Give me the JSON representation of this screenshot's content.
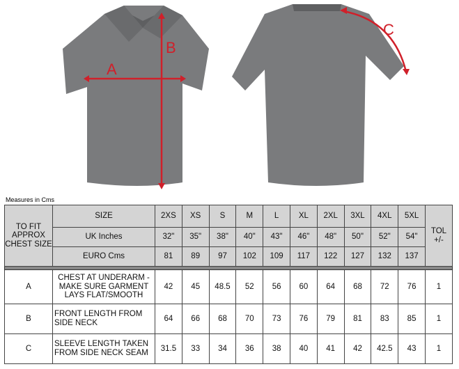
{
  "labels": {
    "a": "A",
    "b": "B",
    "c": "C"
  },
  "colors": {
    "shirt": "#7a7b7d",
    "measure": "#d0202a",
    "header_bg": "#d4d4d4"
  },
  "measures_note": "Measures in Cms",
  "table": {
    "fit_label": "TO FIT APPROX CHEST SIZE",
    "size_label": "SIZE",
    "uk_label": "UK Inches",
    "euro_label": "EURO Cms",
    "tol_label": "TOL +/-",
    "sizes": [
      "2XS",
      "XS",
      "S",
      "M",
      "L",
      "XL",
      "2XL",
      "3XL",
      "4XL",
      "5XL"
    ],
    "uk": [
      "32\"",
      "35\"",
      "38\"",
      "40\"",
      "43\"",
      "46\"",
      "48\"",
      "50\"",
      "52\"",
      "54\""
    ],
    "euro": [
      "81",
      "89",
      "97",
      "102",
      "109",
      "117",
      "122",
      "127",
      "132",
      "137"
    ],
    "rows": [
      {
        "code": "A",
        "desc": "CHEST AT UNDERARM - MAKE SURE GARMENT LAYS FLAT/SMOOTH",
        "values": [
          "42",
          "45",
          "48.5",
          "52",
          "56",
          "60",
          "64",
          "68",
          "72",
          "76"
        ],
        "tol": "1"
      },
      {
        "code": "B",
        "desc": "FRONT LENGTH FROM SIDE NECK",
        "values": [
          "64",
          "66",
          "68",
          "70",
          "73",
          "76",
          "79",
          "81",
          "83",
          "85"
        ],
        "tol": "1"
      },
      {
        "code": "C",
        "desc": "SLEEVE LENGTH TAKEN FROM SIDE NECK SEAM",
        "values": [
          "31.5",
          "33",
          "34",
          "36",
          "38",
          "40",
          "41",
          "42",
          "42.5",
          "43"
        ],
        "tol": "1"
      }
    ]
  }
}
